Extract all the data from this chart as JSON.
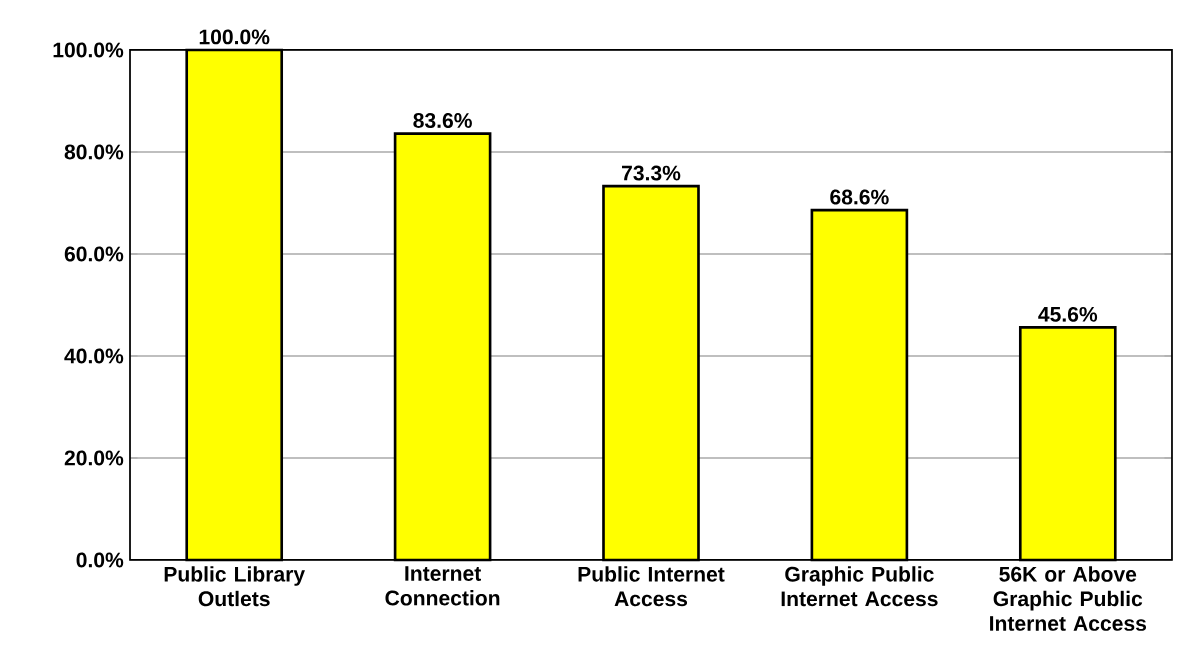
{
  "chart_data": {
    "type": "bar",
    "categories": [
      "Public Library Outlets",
      "Internet Connection",
      "Public Internet Access",
      "Graphic Public Internet Access",
      "56K or Above Graphic Public Internet Access"
    ],
    "values": [
      100.0,
      83.6,
      73.3,
      68.6,
      45.6
    ],
    "value_labels": [
      "100.0%",
      "83.6%",
      "73.3%",
      "68.6%",
      "45.6%"
    ],
    "color": "#ffff00",
    "ylim": [
      0,
      100
    ],
    "yticks": [
      {
        "value": 0,
        "label": "0.0%"
      },
      {
        "value": 20,
        "label": "20.0%"
      },
      {
        "value": 40,
        "label": "40.0%"
      },
      {
        "value": 60,
        "label": "60.0%"
      },
      {
        "value": 80,
        "label": "80.0%"
      },
      {
        "value": 100,
        "label": "100.0%"
      }
    ],
    "grid": "y"
  }
}
